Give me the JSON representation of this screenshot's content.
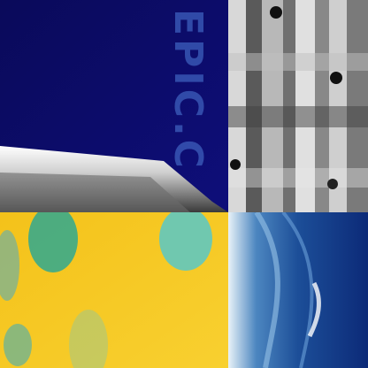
{
  "photo_text": "EPIC.C"
}
